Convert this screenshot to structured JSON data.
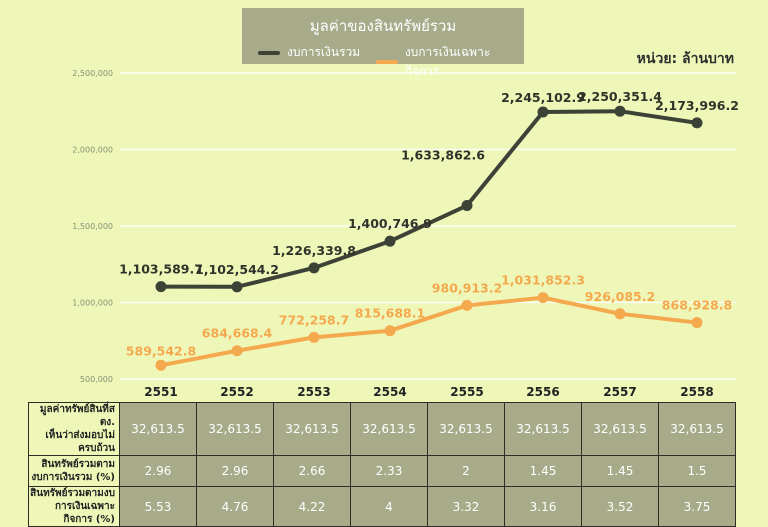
{
  "chart_data": {
    "type": "line",
    "title": "มูลค่าของสินทรัพย์รวม",
    "unit": "หน่วย: ล้านบาท",
    "categories": [
      "2551",
      "2552",
      "2553",
      "2554",
      "2555",
      "2556",
      "2557",
      "2558"
    ],
    "ylim": [
      500000,
      2500000
    ],
    "yticks": [
      "500,000",
      "1,000,000",
      "1,500,000",
      "2,000,000",
      "2,500,000"
    ],
    "ytick_values": [
      500000,
      1000000,
      1500000,
      2000000,
      2500000
    ],
    "grid": true,
    "legend_position": "top-center",
    "series": [
      {
        "name": "งบการเงินรวม",
        "color": "#3d4236",
        "values": [
          1103589.7,
          1102544.2,
          1226339.8,
          1400746.9,
          1633862.6,
          2245102.9,
          2250351.4,
          2173996.2
        ],
        "labels": [
          "1,103,589.7",
          "1,102,544.2",
          "1,226,339.8",
          "1,400,746.9",
          "1,633,862.6",
          "2,245,102.9",
          "2,250,351.4",
          "2,173,996.2"
        ]
      },
      {
        "name": "งบการเงินเฉพาะกิจการ",
        "color": "#f5a94e",
        "values": [
          589542.8,
          684668.4,
          772258.7,
          815688.1,
          980913.2,
          1031852.3,
          926085.2,
          868928.8
        ],
        "labels": [
          "589,542.8",
          "684,668.4",
          "772,258.7",
          "815,688.1",
          "980,913.2",
          "1,031,852.3",
          "926,085.2",
          "868,928.8"
        ]
      }
    ]
  },
  "table": {
    "rows": [
      {
        "label_line1": "มูลค่าทรัพย์สินที่สตง.",
        "label_line2": "เห็นว่าส่งมอบไม่ครบถ้วน",
        "values": [
          "32,613.5",
          "32,613.5",
          "32,613.5",
          "32,613.5",
          "32,613.5",
          "32,613.5",
          "32,613.5",
          "32,613.5"
        ]
      },
      {
        "label_line1": "สินทรัพย์รวมตาม",
        "label_line2": "งบการเงินรวม (%)",
        "values": [
          "2.96",
          "2.96",
          "2.66",
          "2.33",
          "2",
          "1.45",
          "1.45",
          "1.5"
        ]
      },
      {
        "label_line1": "สินทรัพย์รวมตามงบ",
        "label_line2": "การเงินเฉพาะกิจการ (%)",
        "values": [
          "5.53",
          "4.76",
          "4.22",
          "4",
          "3.32",
          "3.16",
          "3.52",
          "3.75"
        ]
      }
    ]
  }
}
